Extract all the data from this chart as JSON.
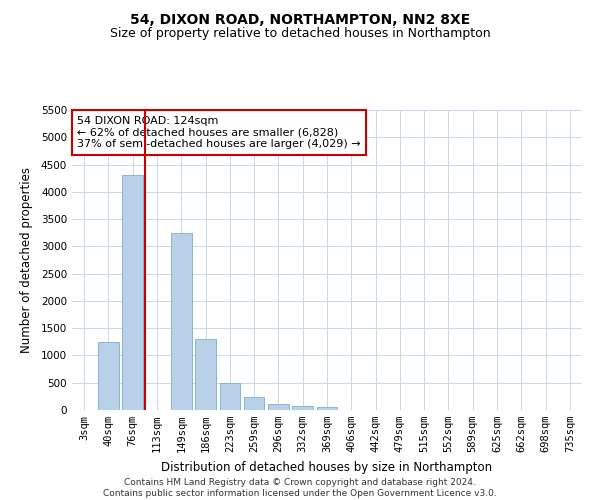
{
  "title": "54, DIXON ROAD, NORTHAMPTON, NN2 8XE",
  "subtitle": "Size of property relative to detached houses in Northampton",
  "xlabel": "Distribution of detached houses by size in Northampton",
  "ylabel": "Number of detached properties",
  "categories": [
    "3sqm",
    "40sqm",
    "76sqm",
    "113sqm",
    "149sqm",
    "186sqm",
    "223sqm",
    "259sqm",
    "296sqm",
    "332sqm",
    "369sqm",
    "406sqm",
    "442sqm",
    "479sqm",
    "515sqm",
    "552sqm",
    "589sqm",
    "625sqm",
    "662sqm",
    "698sqm",
    "735sqm"
  ],
  "values": [
    0,
    1250,
    4300,
    0,
    3250,
    1300,
    500,
    230,
    110,
    80,
    60,
    0,
    0,
    0,
    0,
    0,
    0,
    0,
    0,
    0,
    0
  ],
  "bar_color": "#b8d0e8",
  "bar_edge_color": "#7aadd4",
  "highlight_line_index": 3,
  "highlight_line_color": "#cc0000",
  "annotation_text": "54 DIXON ROAD: 124sqm\n← 62% of detached houses are smaller (6,828)\n37% of semi-detached houses are larger (4,029) →",
  "annotation_box_color": "#ffffff",
  "annotation_box_edge": "#cc0000",
  "ylim": [
    0,
    5500
  ],
  "yticks": [
    0,
    500,
    1000,
    1500,
    2000,
    2500,
    3000,
    3500,
    4000,
    4500,
    5000,
    5500
  ],
  "footer_line1": "Contains HM Land Registry data © Crown copyright and database right 2024.",
  "footer_line2": "Contains public sector information licensed under the Open Government Licence v3.0.",
  "bg_color": "#ffffff",
  "grid_color": "#c8d8e8",
  "title_fontsize": 10,
  "subtitle_fontsize": 9,
  "axis_label_fontsize": 8.5,
  "tick_fontsize": 7.5,
  "footer_fontsize": 6.5
}
